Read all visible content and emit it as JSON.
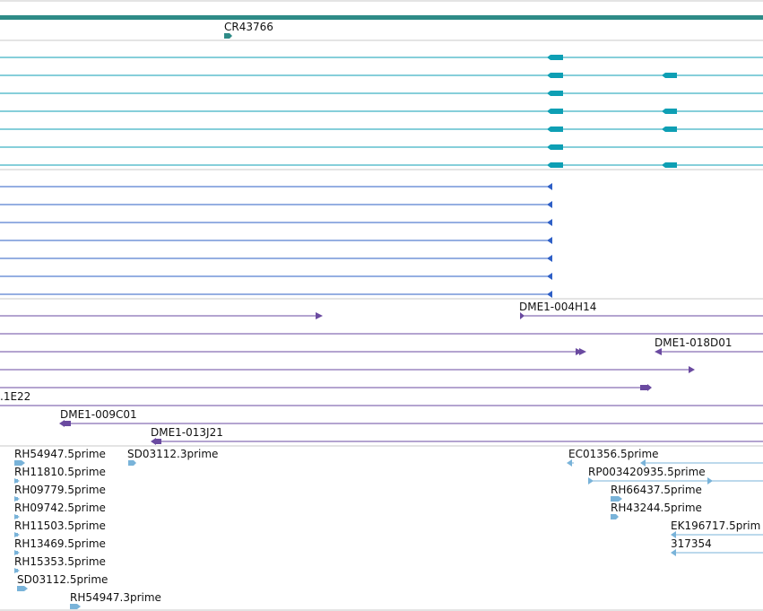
{
  "colors": {
    "gene_track": "#2e8b87",
    "transcript": "#0e9fb4",
    "protein": "#2e5fc6",
    "clone": "#6a4aa0",
    "est": "#79b3d9",
    "separator": "#c8c8c8",
    "label": "#111111"
  },
  "gene_track": {
    "label": "CR43766"
  },
  "clones": {
    "labels": [
      "DME1-004H14",
      "DME1-018D01",
      ".1E22",
      "DME1-009C01",
      "DME1-013J21"
    ]
  },
  "ests": {
    "labels": [
      "RH54947.5prime",
      "SD03112.3prime",
      "EC01356.5prime",
      "RH11810.5prime",
      "RP003420935.5prime",
      "RH09779.5prime",
      "RH66437.5prime",
      "RH09742.5prime",
      "RH43244.5prime",
      "RH11503.5prime",
      "EK196717.5prim",
      "RH13469.5prime",
      "317354",
      "RH15353.5prime",
      "SD03112.5prime",
      "RH54947.3prime"
    ]
  }
}
